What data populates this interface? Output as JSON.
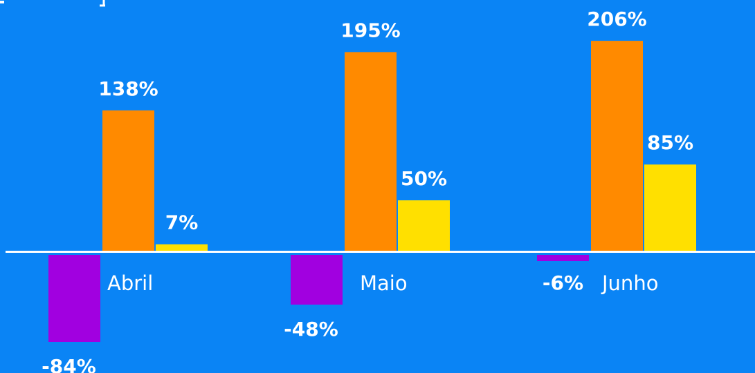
{
  "chart_data": {
    "type": "bar",
    "categories": [
      "Abril",
      "Maio",
      "Junho"
    ],
    "series": [
      {
        "color": "#a100e0",
        "values": [
          -84,
          -48,
          -6
        ]
      },
      {
        "color": "#ff8a00",
        "values": [
          138,
          195,
          206
        ]
      },
      {
        "color": "#ffe000",
        "values": [
          7,
          50,
          85
        ]
      }
    ],
    "value_labels": [
      [
        "-84%",
        "-48%",
        "-6%"
      ],
      [
        "138%",
        "195%",
        "206%"
      ],
      [
        "7%",
        "50%",
        "85%"
      ]
    ],
    "value_suffix": "%",
    "grid": false,
    "legend": "none",
    "background_color": "#0a84f5",
    "axis_color": "#ffffff",
    "text_color": "#ffffff"
  }
}
